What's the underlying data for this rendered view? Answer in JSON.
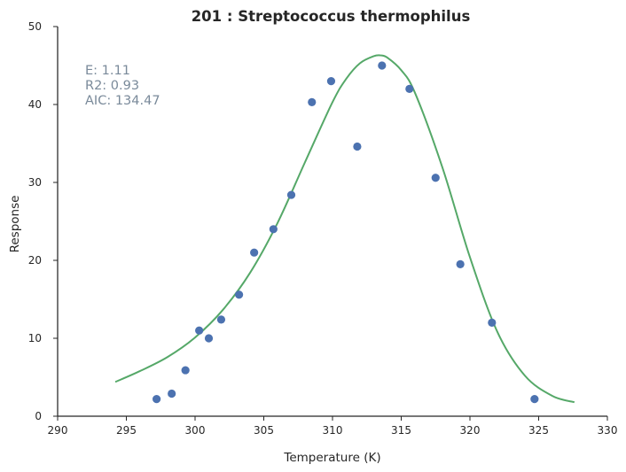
{
  "chart_data": {
    "type": "scatter",
    "title": "201 : Streptococcus thermophilus",
    "xlabel": "Temperature (K)",
    "ylabel": "Response",
    "xlim": [
      290,
      330
    ],
    "ylim": [
      0,
      50
    ],
    "xticks": [
      290,
      295,
      300,
      305,
      310,
      315,
      320,
      325,
      330
    ],
    "yticks": [
      0,
      10,
      20,
      30,
      40,
      50
    ],
    "grid": false,
    "colors": {
      "points": "#4c72b0",
      "fit": "#55a868",
      "axis": "#262626",
      "annotation": "#7a8a9a"
    },
    "annotations": [
      "E:  1.11",
      "R2:  0.93",
      "AIC: 134.47"
    ],
    "series": [
      {
        "kind": "points",
        "x": [
          297.2,
          298.3,
          299.3,
          300.3,
          301.0,
          301.9,
          303.2,
          304.3,
          305.7,
          307.0,
          308.5,
          309.9,
          311.8,
          313.6,
          315.6,
          317.5,
          319.3,
          321.6,
          324.7
        ],
        "y": [
          2.2,
          2.9,
          5.9,
          11.0,
          10.0,
          12.4,
          15.6,
          21.0,
          24.0,
          28.4,
          40.3,
          43.0,
          34.6,
          45.0,
          42.0,
          30.6,
          19.5,
          12.0,
          2.2
        ]
      },
      {
        "kind": "fit",
        "x": [
          294.2,
          296,
          298,
          300,
          302,
          304,
          306,
          308,
          310,
          311,
          312,
          313,
          313.5,
          314,
          315,
          316,
          318,
          320,
          322,
          324,
          326,
          327.6
        ],
        "y": [
          4.4,
          5.8,
          7.6,
          10.1,
          13.6,
          18.4,
          24.8,
          32.6,
          40.3,
          43.3,
          45.3,
          46.2,
          46.3,
          46.0,
          44.4,
          41.5,
          31.9,
          20.4,
          10.8,
          5.2,
          2.6,
          1.8
        ]
      }
    ]
  }
}
